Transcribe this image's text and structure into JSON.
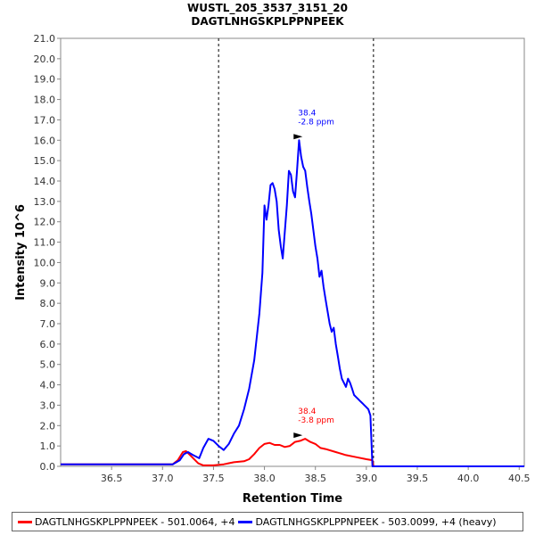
{
  "chart_data": {
    "type": "line",
    "title": "WUSTL_205_3537_3151_20",
    "subtitle": "DAGTLNHGSKPLPPNPEEK",
    "xlabel": "Retention Time",
    "ylabel": "Intensity 10^6",
    "xlim": [
      36.0,
      40.55
    ],
    "ylim": [
      0,
      21.0
    ],
    "x_ticks": [
      "36.5",
      "37.0",
      "37.5",
      "38.0",
      "38.5",
      "39.0",
      "39.5",
      "40.0",
      "40.5"
    ],
    "y_ticks": [
      "0.0",
      "1.0",
      "2.0",
      "3.0",
      "4.0",
      "5.0",
      "6.0",
      "7.0",
      "8.0",
      "9.0",
      "10.0",
      "11.0",
      "12.0",
      "13.0",
      "14.0",
      "15.0",
      "16.0",
      "17.0",
      "18.0",
      "19.0",
      "20.0",
      "21.0"
    ],
    "grid": false,
    "legend_position": "bottom",
    "integration_bounds": [
      37.55,
      39.07
    ],
    "series": [
      {
        "name": "DAGTLNHGSKPLPPNPEEK - 501.0064, +4",
        "color": "#ff0000",
        "x": [
          36.0,
          37.1,
          37.15,
          37.2,
          37.23,
          37.28,
          37.35,
          37.4,
          37.5,
          37.6,
          37.7,
          37.8,
          37.85,
          37.9,
          37.95,
          38.0,
          38.05,
          38.1,
          38.15,
          38.2,
          38.25,
          38.3,
          38.35,
          38.4,
          38.45,
          38.5,
          38.55,
          38.6,
          38.7,
          38.8,
          38.9,
          39.0,
          39.06,
          39.07,
          39.2,
          40.55
        ],
        "y": [
          0.1,
          0.1,
          0.3,
          0.7,
          0.75,
          0.5,
          0.15,
          0.05,
          0.05,
          0.1,
          0.2,
          0.25,
          0.35,
          0.6,
          0.9,
          1.1,
          1.15,
          1.05,
          1.05,
          0.95,
          1.0,
          1.2,
          1.25,
          1.35,
          1.2,
          1.1,
          0.9,
          0.85,
          0.7,
          0.55,
          0.45,
          0.35,
          0.3,
          0.0,
          0.0,
          0.0
        ]
      },
      {
        "name": "DAGTLNHGSKPLPPNPEEK - 503.0099, +4 (heavy)",
        "color": "#0000ff",
        "x": [
          36.0,
          37.1,
          37.17,
          37.21,
          37.25,
          37.3,
          37.36,
          37.4,
          37.45,
          37.5,
          37.55,
          37.6,
          37.65,
          37.7,
          37.75,
          37.8,
          37.85,
          37.9,
          37.95,
          37.98,
          38.0,
          38.02,
          38.04,
          38.06,
          38.08,
          38.1,
          38.12,
          38.14,
          38.16,
          38.18,
          38.2,
          38.22,
          38.24,
          38.26,
          38.28,
          38.3,
          38.32,
          38.34,
          38.36,
          38.38,
          38.4,
          38.42,
          38.44,
          38.46,
          38.48,
          38.5,
          38.52,
          38.54,
          38.56,
          38.58,
          38.6,
          38.62,
          38.64,
          38.66,
          38.68,
          38.7,
          38.72,
          38.74,
          38.76,
          38.78,
          38.8,
          38.82,
          38.84,
          38.86,
          38.88,
          38.9,
          38.92,
          38.94,
          38.96,
          38.98,
          39.0,
          39.02,
          39.04,
          39.06,
          39.07,
          39.2,
          40.55
        ],
        "y": [
          0.1,
          0.1,
          0.3,
          0.6,
          0.7,
          0.55,
          0.4,
          0.9,
          1.35,
          1.25,
          1.0,
          0.8,
          1.1,
          1.6,
          2.0,
          2.8,
          3.8,
          5.2,
          7.5,
          9.5,
          12.8,
          12.1,
          12.8,
          13.8,
          13.9,
          13.6,
          13.0,
          11.6,
          10.8,
          10.2,
          11.5,
          12.8,
          14.5,
          14.3,
          13.5,
          13.2,
          14.5,
          16.0,
          15.2,
          14.7,
          14.5,
          13.7,
          13.0,
          12.4,
          11.6,
          10.8,
          10.2,
          9.3,
          9.6,
          8.8,
          8.2,
          7.6,
          7.0,
          6.6,
          6.8,
          6.0,
          5.4,
          4.8,
          4.3,
          4.1,
          3.9,
          4.3,
          4.1,
          3.8,
          3.5,
          3.4,
          3.3,
          3.2,
          3.1,
          3.0,
          2.9,
          2.8,
          2.5,
          0.0,
          0.0,
          0.0,
          0.0
        ]
      }
    ],
    "annotations": [
      {
        "series": 0,
        "x": 38.4,
        "y": 1.35,
        "lines": [
          "38.4",
          "-3.8 ppm"
        ],
        "color": "#ff0000"
      },
      {
        "series": 1,
        "x": 38.4,
        "y": 16.0,
        "lines": [
          "38.4",
          "-2.8 ppm"
        ],
        "color": "#0000ff"
      }
    ]
  }
}
